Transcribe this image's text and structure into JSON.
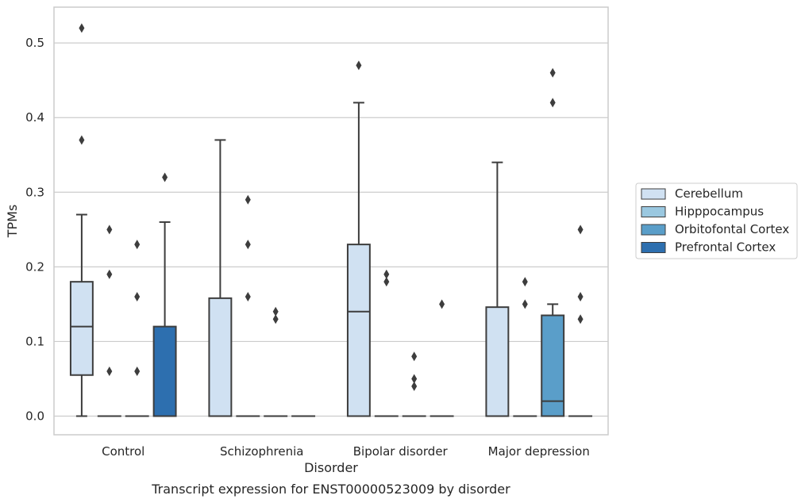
{
  "chart_data": {
    "type": "box",
    "title": "",
    "caption": "Transcript expression for ENST00000523009 by disorder",
    "xlabel": "Disorder",
    "ylabel": "TPMs",
    "ylim": [
      -0.025,
      0.548
    ],
    "yticks": [
      0.0,
      0.1,
      0.2,
      0.3,
      0.4,
      0.5
    ],
    "ytick_labels": [
      "0.0",
      "0.1",
      "0.2",
      "0.3",
      "0.4",
      "0.5"
    ],
    "grid": true,
    "legend_position": "right",
    "categories": [
      "Control",
      "Schizophrenia",
      "Bipolar disorder",
      "Major depression"
    ],
    "series": [
      {
        "name": "Cerebellum",
        "color": "#d0e1f2",
        "boxes": [
          {
            "whislo": 0.0,
            "q1": 0.055,
            "med": 0.12,
            "q3": 0.18,
            "whishi": 0.27,
            "fliers": [
              0.37,
              0.52
            ]
          },
          {
            "whislo": 0.0,
            "q1": 0.0,
            "med": 0.0,
            "q3": 0.158,
            "whishi": 0.37,
            "fliers": []
          },
          {
            "whislo": 0.0,
            "q1": 0.0,
            "med": 0.14,
            "q3": 0.23,
            "whishi": 0.42,
            "fliers": [
              0.47
            ]
          },
          {
            "whislo": 0.0,
            "q1": 0.0,
            "med": 0.0,
            "q3": 0.146,
            "whishi": 0.34,
            "fliers": []
          }
        ]
      },
      {
        "name": "Hipppocampus",
        "color": "#9ac8e0",
        "boxes": [
          {
            "whislo": 0.0,
            "q1": 0.0,
            "med": 0.0,
            "q3": 0.0,
            "whishi": 0.0,
            "fliers": [
              0.06,
              0.19,
              0.25
            ]
          },
          {
            "whislo": 0.0,
            "q1": 0.0,
            "med": 0.0,
            "q3": 0.0,
            "whishi": 0.0,
            "fliers": [
              0.16,
              0.23,
              0.29
            ]
          },
          {
            "whislo": 0.0,
            "q1": 0.0,
            "med": 0.0,
            "q3": 0.0,
            "whishi": 0.0,
            "fliers": [
              0.18,
              0.19
            ]
          },
          {
            "whislo": 0.0,
            "q1": 0.0,
            "med": 0.0,
            "q3": 0.0,
            "whishi": 0.0,
            "fliers": [
              0.15,
              0.18
            ]
          }
        ]
      },
      {
        "name": "Orbitofontal Cortex",
        "color": "#5a9ec9",
        "boxes": [
          {
            "whislo": 0.0,
            "q1": 0.0,
            "med": 0.0,
            "q3": 0.0,
            "whishi": 0.0,
            "fliers": [
              0.06,
              0.16,
              0.23
            ]
          },
          {
            "whislo": 0.0,
            "q1": 0.0,
            "med": 0.0,
            "q3": 0.0,
            "whishi": 0.0,
            "fliers": [
              0.13,
              0.14
            ]
          },
          {
            "whislo": 0.0,
            "q1": 0.0,
            "med": 0.0,
            "q3": 0.0,
            "whishi": 0.0,
            "fliers": [
              0.04,
              0.05,
              0.08
            ]
          },
          {
            "whislo": 0.0,
            "q1": 0.0,
            "med": 0.02,
            "q3": 0.135,
            "whishi": 0.15,
            "fliers": [
              0.42,
              0.46
            ]
          }
        ]
      },
      {
        "name": "Prefrontal Cortex",
        "color": "#2d6faf",
        "boxes": [
          {
            "whislo": 0.0,
            "q1": 0.0,
            "med": 0.0,
            "q3": 0.12,
            "whishi": 0.26,
            "fliers": [
              0.32
            ]
          },
          {
            "whislo": 0.0,
            "q1": 0.0,
            "med": 0.0,
            "q3": 0.0,
            "whishi": 0.0,
            "fliers": []
          },
          {
            "whislo": 0.0,
            "q1": 0.0,
            "med": 0.0,
            "q3": 0.0,
            "whishi": 0.0,
            "fliers": [
              0.15
            ]
          },
          {
            "whislo": 0.0,
            "q1": 0.0,
            "med": 0.0,
            "q3": 0.0,
            "whishi": 0.0,
            "fliers": [
              0.13,
              0.16,
              0.25
            ]
          }
        ]
      }
    ]
  }
}
